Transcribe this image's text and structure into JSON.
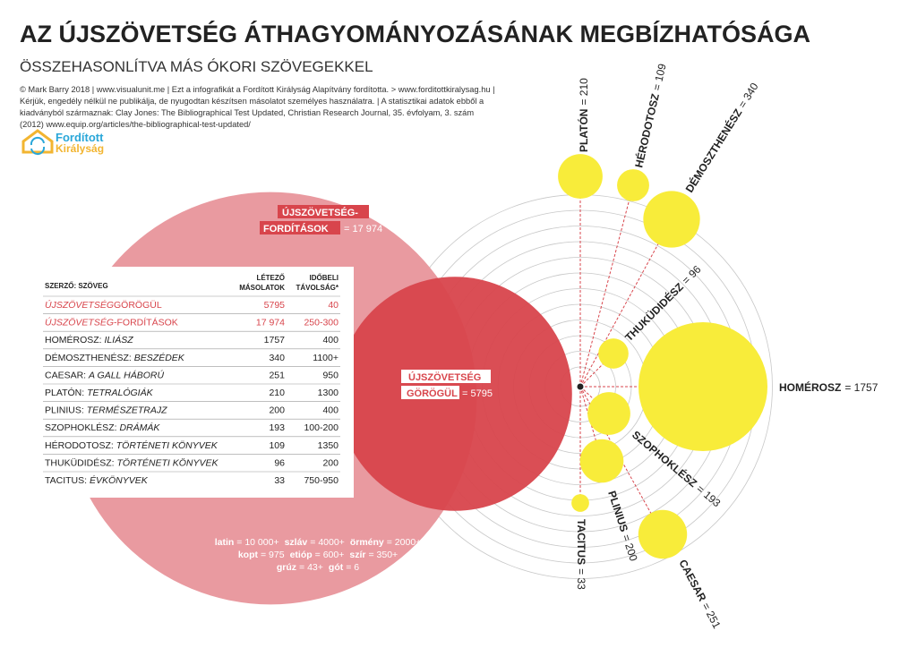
{
  "header": {
    "title": "AZ ÚJSZÖVETSÉG ÁTHAGYOMÁNYOZÁSÁNAK MEGBÍZHATÓSÁGA",
    "subtitle": "ÖSSZEHASONLÍTVA MÁS ÓKORI SZÖVEGEKKEL",
    "credits": [
      "© Mark Barry 2018 | www.visualunit.me | Ezt a infografikát a Fordított Királyság Alapítvány fordította. > www.forditottkiralysag.hu |",
      "Kérjük, engedély nélkül ne publikálja, de nyugodtan készítsen másolatot személyes használatra. | A statisztikai adatok ebből a",
      "kiadványból származnak: Clay Jones: The Bibliographical Test Updated, Christian Research Journal, 35. évfolyam, 3. szám",
      "(2012) www.equip.org/articles/the-bibliographical-test-updated/"
    ]
  },
  "logo": {
    "line1": "Fordított",
    "line2": "Királyság"
  },
  "nt_translations": {
    "name": [
      "ÚJSZÖVETSÉG-",
      "FORDÍTÁSOK"
    ],
    "label": "= 17 974",
    "value": 17974
  },
  "nt_greek": {
    "name": [
      "ÚJSZÖVETSÉG",
      "GÖRÖGÜL"
    ],
    "label": "= 5795",
    "value": 5795
  },
  "table": {
    "headers": [
      "SZERZŐ: SZÖVEG",
      "LÉTEZŐ",
      "MÁSOLATOK",
      "IDŐBELI",
      "TÁVOLSÁG*"
    ],
    "rows": [
      [
        "ÚJSZÖVETSÉG",
        "GÖRÖGÜL",
        "5795",
        "40"
      ],
      [
        "ÚJSZÖVETSÉG",
        "-FORDÍTÁSOK",
        "17 974",
        "250-300"
      ],
      [
        "HOMÉROSZ: ",
        "ILIÁSZ",
        "1757",
        "400"
      ],
      [
        "DÉMOSZTHENÉSZ: ",
        "BESZÉDEK",
        "340",
        "1100+"
      ],
      [
        "CAESAR: ",
        "A GALL HÁBORÚ",
        "251",
        "950"
      ],
      [
        "PLATÓN: ",
        "TETRALÓGIÁK",
        "210",
        "1300"
      ],
      [
        "PLINIUS: ",
        "TERMÉSZETRAJZ",
        "200",
        "400"
      ],
      [
        "SZOPHOKLÉSZ: ",
        "DRÁMÁK",
        "193",
        "100-200"
      ],
      [
        "HÉRODOTOSZ: ",
        "TÖRTÉNETI KÖNYVEK",
        "109",
        "1350"
      ],
      [
        "THUKÜDIDÉSZ: ",
        "TÖRTÉNETI KÖNYVEK",
        "96",
        "200"
      ],
      [
        "TACITUS: ",
        "ÉVKÖNYVEK",
        "33",
        "750-950"
      ]
    ]
  },
  "bubbles": [
    {
      "name": "PLATÓN",
      "label": "= 210",
      "value": 210
    },
    {
      "name": "HÉRODOTOSZ",
      "label": "= 109",
      "value": 109
    },
    {
      "name": "DÉMOSZTHENÉSZ",
      "label": "= 340",
      "value": 340
    },
    {
      "name": "THUKÜDIDÉSZ",
      "label": "= 96",
      "value": 96
    },
    {
      "name": "HOMÉROSZ",
      "label": "= 1757",
      "value": 1757
    },
    {
      "name": "SZOPHOKLÉSZ",
      "label": "= 193",
      "value": 193
    },
    {
      "name": "PLINIUS",
      "label": "= 200",
      "value": 200
    },
    {
      "name": "TACITUS",
      "label": "= 33",
      "value": 33
    },
    {
      "name": "CAESAR",
      "label": "= 251",
      "value": 251
    }
  ],
  "translations": [
    {
      "name": "latin",
      "count": "= 10 000+"
    },
    {
      "name": "szláv",
      "count": "= 4000+"
    },
    {
      "name": "örmény",
      "count": "= 2000+"
    },
    {
      "name": "kopt",
      "count": "= 975"
    },
    {
      "name": "etióp",
      "count": "= 600+"
    },
    {
      "name": "szír",
      "count": "= 350+"
    },
    {
      "name": "grúz",
      "count": "= 43+"
    },
    {
      "name": "gót",
      "count": "= 6"
    }
  ]
}
